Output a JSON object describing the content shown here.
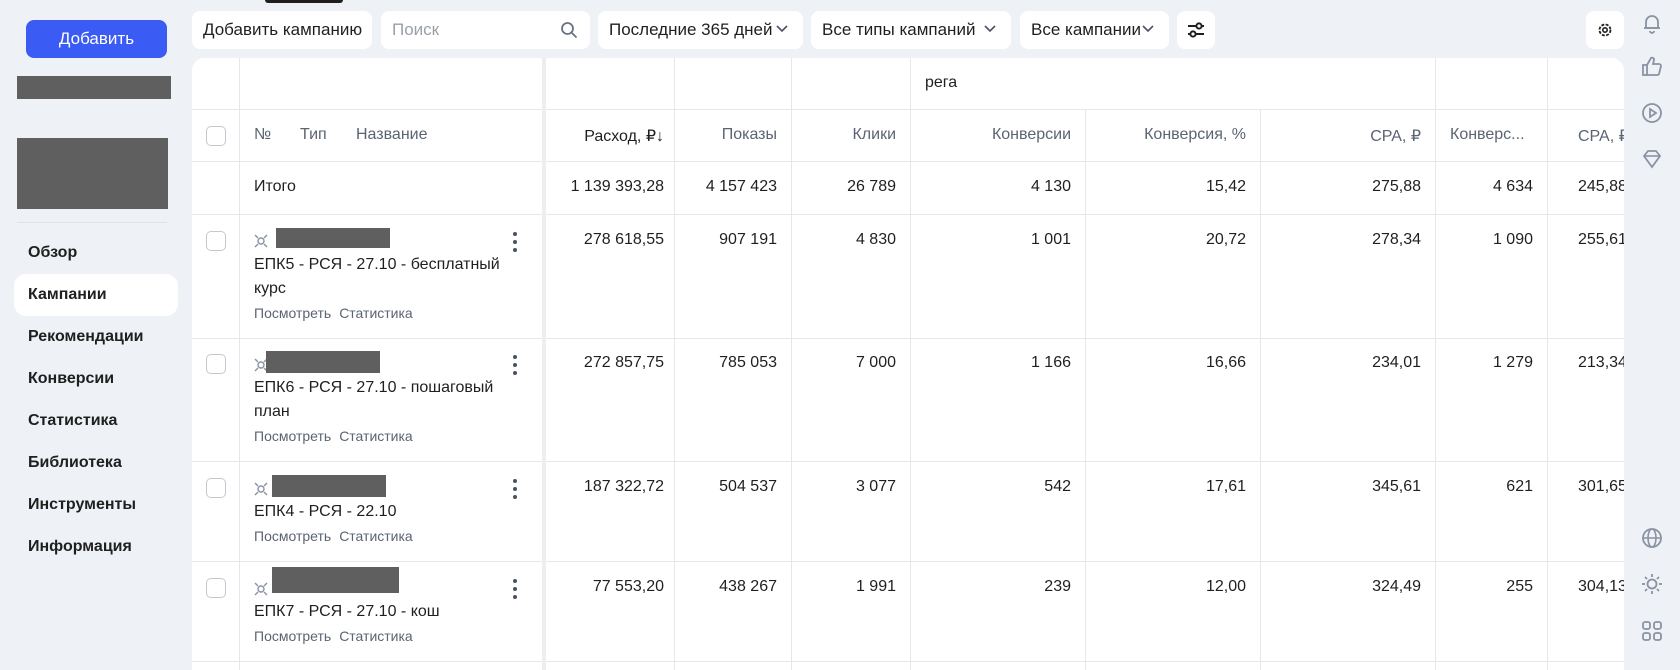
{
  "sidebar": {
    "add_label": "Добавить",
    "nav": [
      {
        "label": "Обзор",
        "active": false
      },
      {
        "label": "Кампании",
        "active": true
      },
      {
        "label": "Рекомендации",
        "active": false
      },
      {
        "label": "Конверсии",
        "active": false
      },
      {
        "label": "Статистика",
        "active": false
      },
      {
        "label": "Библиотека",
        "active": false
      },
      {
        "label": "Инструменты",
        "active": false
      },
      {
        "label": "Информация",
        "active": false
      }
    ]
  },
  "toolbar": {
    "add_campaign": "Добавить кампанию",
    "search_placeholder": "Поиск",
    "period": "Последние 365 дней",
    "types": "Все типы кампаний",
    "campaigns": "Все кампании"
  },
  "table": {
    "group_header": "рега",
    "headers": {
      "num": "№",
      "type": "Тип",
      "name": "Название",
      "spend": "Расход, ₽↓",
      "impressions": "Показы",
      "clicks": "Клики",
      "conversions": "Конверсии",
      "conv_rate": "Конверсия, %",
      "cpa": "CPA, ₽",
      "conversions2": "Конверс...",
      "cpa2": "CPA, ₽"
    },
    "total": {
      "label": "Итого",
      "spend": "1 139 393,28",
      "impressions": "4 157 423",
      "clicks": "26 789",
      "conversions": "4 130",
      "conv_rate": "15,42",
      "cpa": "275,88",
      "conversions2": "4 634",
      "cpa2": "245,88"
    },
    "link_view": "Посмотреть",
    "link_stats": "Статистика",
    "rows": [
      {
        "name": "ЕПК5 - РСЯ - 27.10 - бесплатный курс",
        "spend": "278 618,55",
        "impressions": "907 191",
        "clicks": "4 830",
        "conversions": "1 001",
        "conv_rate": "20,72",
        "cpa": "278,34",
        "conversions2": "1 090",
        "cpa2": "255,61"
      },
      {
        "name": "ЕПК6 - РСЯ - 27.10 - пошаговый план",
        "spend": "272 857,75",
        "impressions": "785 053",
        "clicks": "7 000",
        "conversions": "1 166",
        "conv_rate": "16,66",
        "cpa": "234,01",
        "conversions2": "1 279",
        "cpa2": "213,34"
      },
      {
        "name": "ЕПК4 - РСЯ - 22.10",
        "spend": "187 322,72",
        "impressions": "504 537",
        "clicks": "3 077",
        "conversions": "542",
        "conv_rate": "17,61",
        "cpa": "345,61",
        "conversions2": "621",
        "cpa2": "301,65"
      },
      {
        "name": "ЕПК7 - РСЯ - 27.10 - кош",
        "spend": "77 553,20",
        "impressions": "438 267",
        "clicks": "1 991",
        "conversions": "239",
        "conv_rate": "12,00",
        "cpa": "324,49",
        "conversions2": "255",
        "cpa2": "304,13"
      }
    ]
  },
  "icons": {
    "search": "search-icon",
    "chevron": "chevron-down-icon",
    "filter": "sliders-icon",
    "settings": "gear-icon",
    "rail": [
      "bell-icon",
      "thumbs-up-icon",
      "play-icon",
      "diamond-icon",
      "globe-icon",
      "sun-icon",
      "apps-grid-icon"
    ]
  },
  "colors": {
    "primary": "#3b5bf5",
    "redacted": "#5f5f5f"
  }
}
